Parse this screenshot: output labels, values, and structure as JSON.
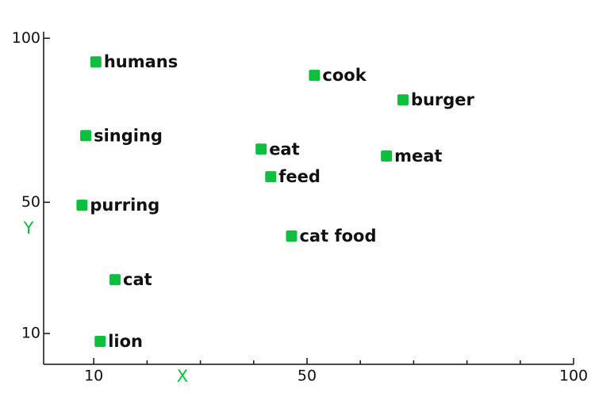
{
  "chart_data": {
    "type": "scatter",
    "x_label": "X",
    "y_label": "Y",
    "point_labels": [
      "humans",
      "cook",
      "burger",
      "singing",
      "eat",
      "meat",
      "feed",
      "purring",
      "cat food",
      "cat",
      "lion"
    ],
    "x": [
      10.4,
      51.4,
      68.0,
      8.5,
      41.4,
      64.9,
      43.2,
      7.8,
      47.1,
      14.0,
      11.2
    ],
    "values": [
      92.8,
      88.7,
      81.2,
      70.3,
      66.2,
      64.1,
      57.8,
      49.1,
      39.7,
      26.4,
      7.6
    ],
    "color": "#0dbf3c",
    "axis_label_color": "#0dbf3c",
    "xlim": [
      0.6,
      100
    ],
    "ylim": [
      0.6,
      102
    ],
    "xticks": [
      10,
      50,
      100
    ],
    "x_minor_ticks": [
      20,
      30,
      40,
      60,
      70,
      80,
      90
    ],
    "yticks": [
      10,
      50,
      100
    ]
  }
}
